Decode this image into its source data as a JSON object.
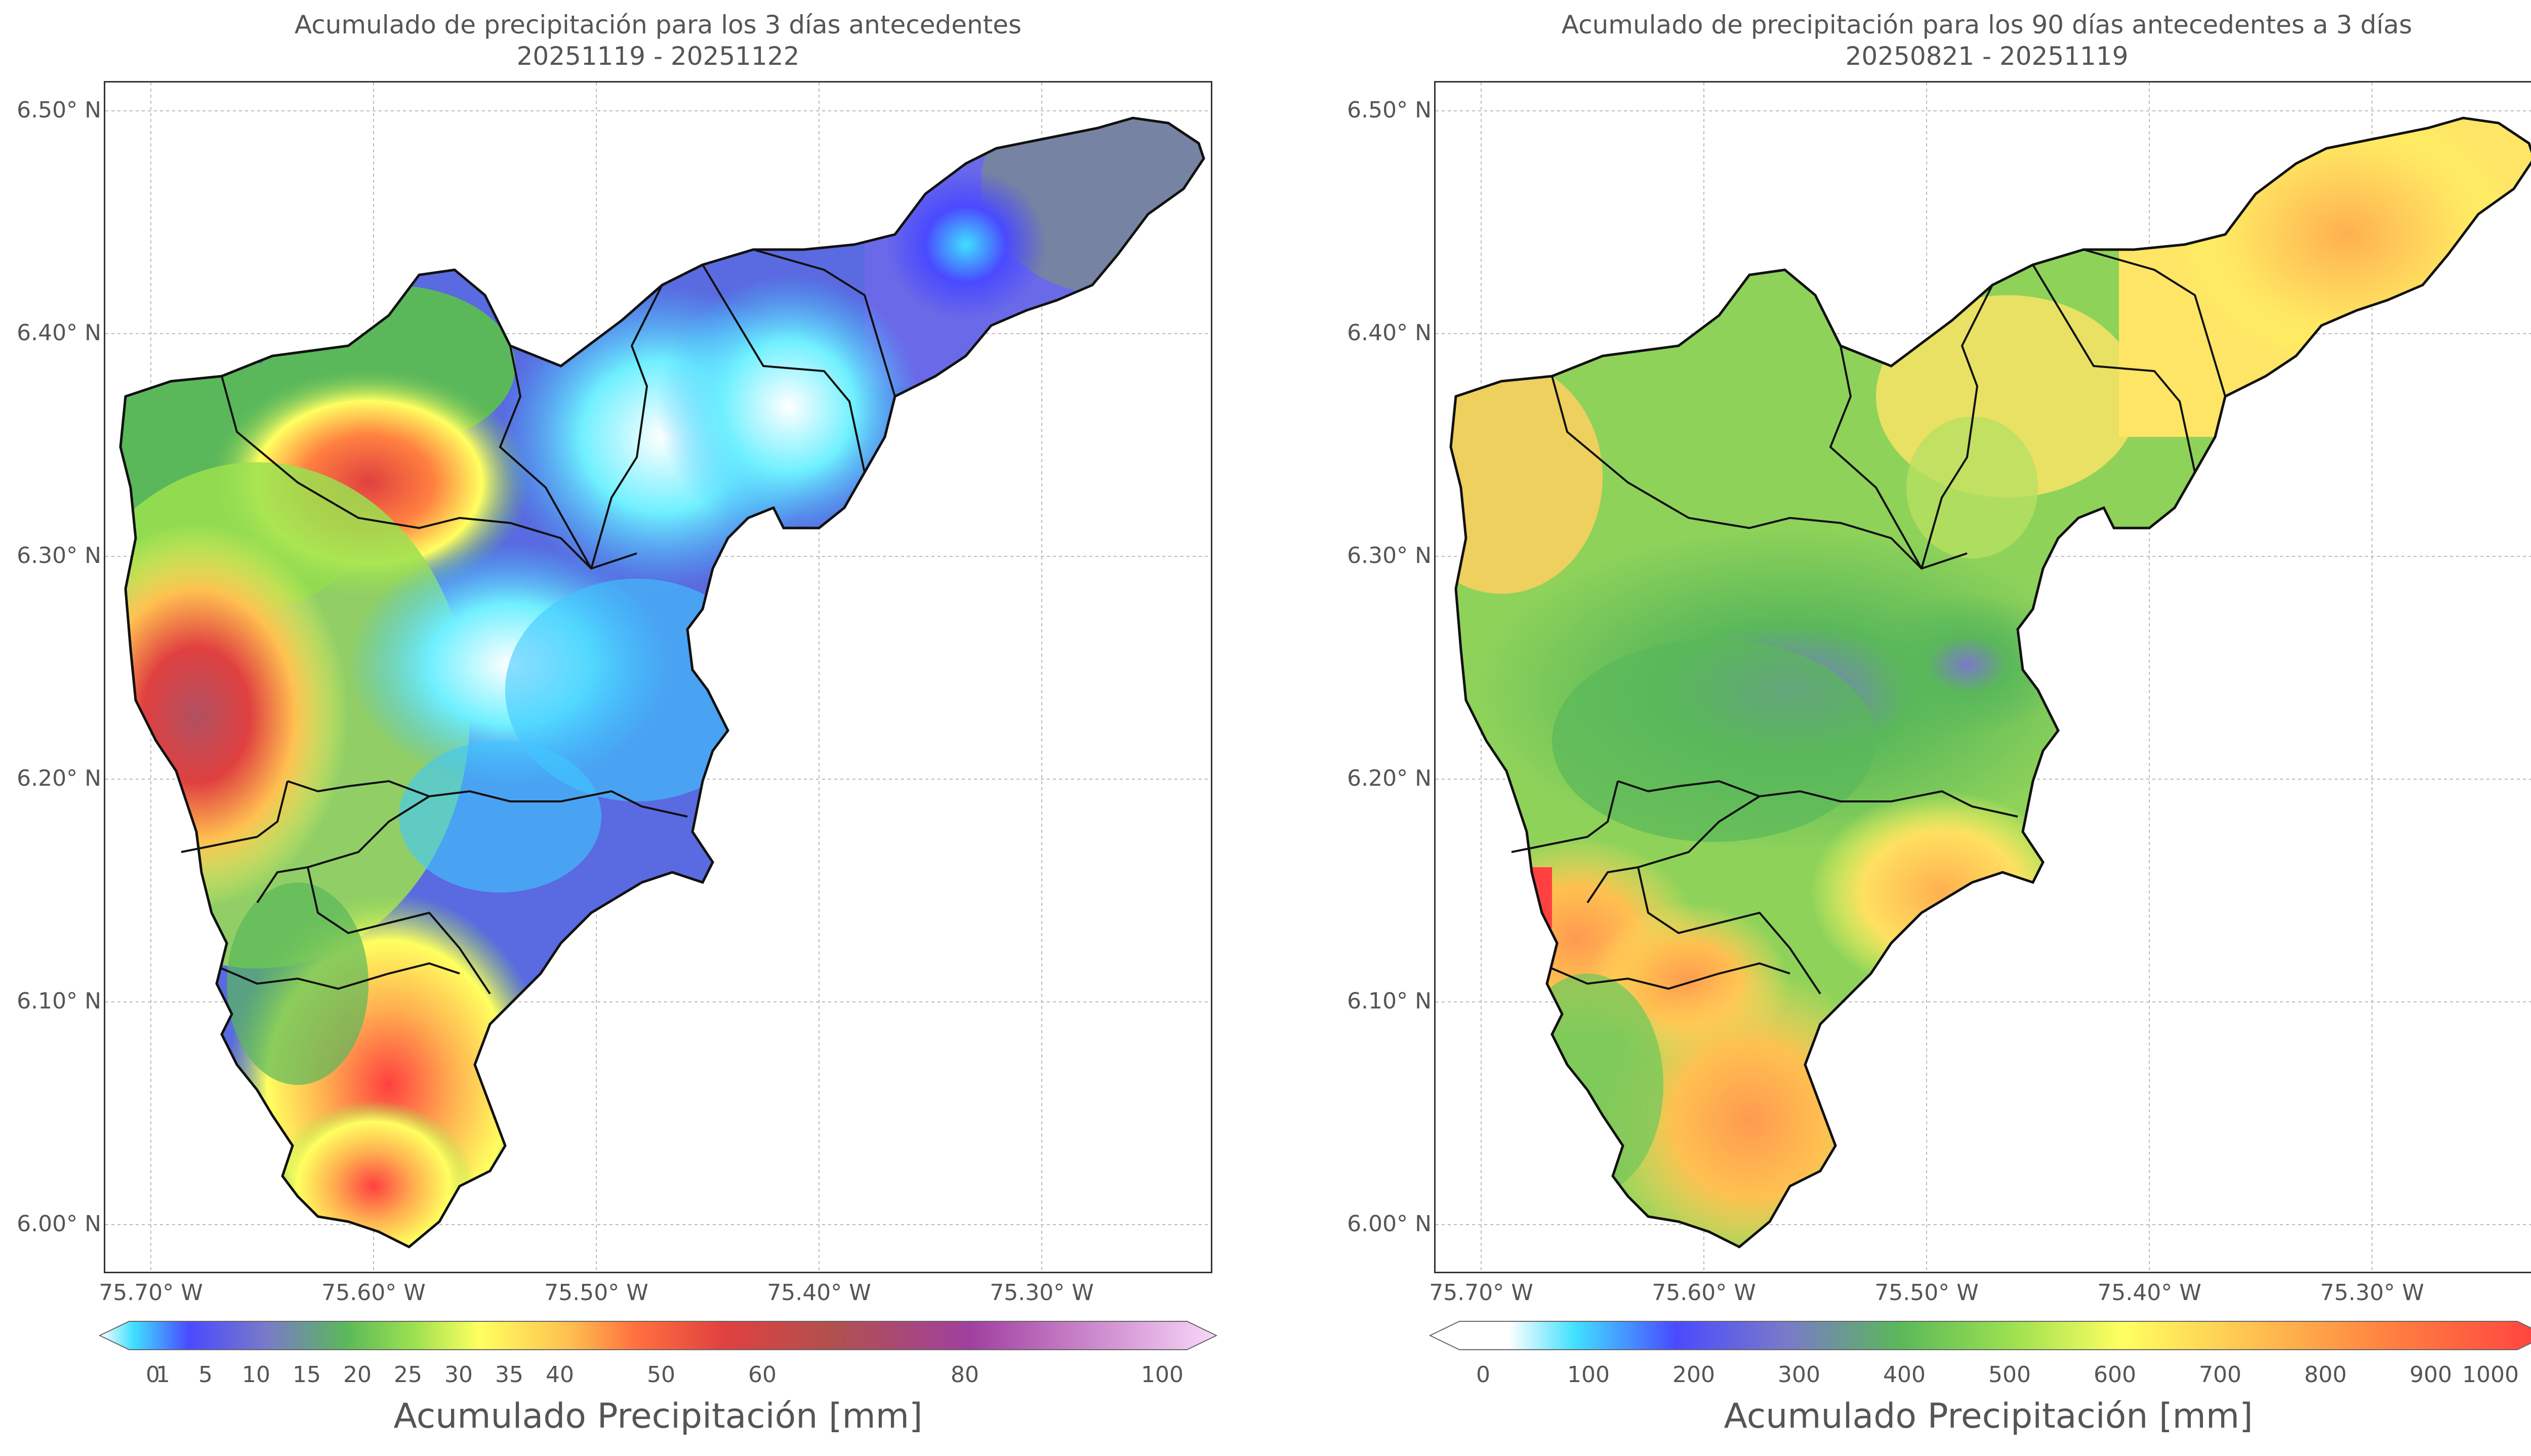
{
  "panels": [
    {
      "title_line1": "Acumulado de precipitación para los 3 días antecedentes",
      "title_line2": "20251119 - 20251122",
      "y_ticks": [
        "6.50° N",
        "6.40° N",
        "6.30° N",
        "6.20° N",
        "6.10° N",
        "6.00° N"
      ],
      "x_ticks": [
        "75.70° W",
        "75.60° W",
        "75.50° W",
        "75.40° W",
        "75.30° W"
      ],
      "colorbar_ticks": [
        "0",
        "1",
        "5",
        "10",
        "15",
        "20",
        "25",
        "30",
        "35",
        "40",
        "50",
        "60",
        "80",
        "100"
      ],
      "colorbar_title": "Acumulado Precipitación [mm]",
      "colors": [
        "#ffffff",
        "#40e0ff",
        "#4a4aff",
        "#7a7ac8",
        "#5ab85a",
        "#9be050",
        "#ffff60",
        "#ffc050",
        "#ff7040",
        "#e04040",
        "#b05050",
        "#a040a0",
        "#d090d0",
        "#f8d8f8"
      ]
    },
    {
      "title_line1": "Acumulado de precipitación para los 90 días antecedentes a 3 días",
      "title_line2": "20250821 - 20251119",
      "y_ticks": [
        "6.50° N",
        "6.40° N",
        "6.30° N",
        "6.20° N",
        "6.10° N",
        "6.00° N"
      ],
      "x_ticks": [
        "75.70° W",
        "75.60° W",
        "75.50° W",
        "75.40° W",
        "75.30° W"
      ],
      "colorbar_ticks": [
        "0",
        "100",
        "200",
        "300",
        "400",
        "500",
        "600",
        "700",
        "800",
        "900",
        "1000"
      ],
      "colorbar_title": "Acumulado Precipitación [mm]",
      "colors": [
        "#ffffff",
        "#40e0ff",
        "#4a4aff",
        "#7a7ac8",
        "#5ab85a",
        "#9be050",
        "#ffff60",
        "#ffc050",
        "#ff8040",
        "#ff4040"
      ]
    }
  ]
}
